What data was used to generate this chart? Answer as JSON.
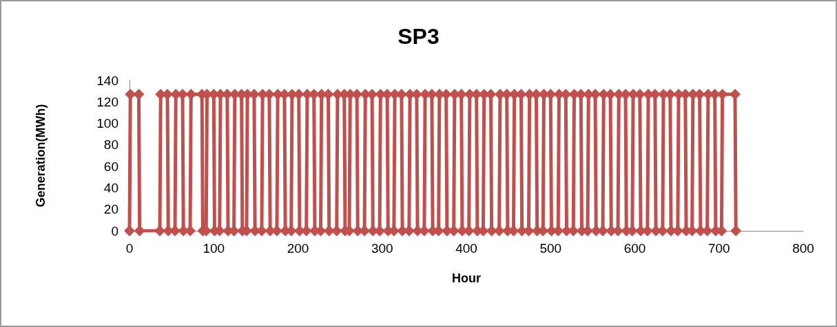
{
  "chart_data": {
    "type": "line",
    "title": "SP3",
    "xlabel": "Hour",
    "ylabel": "Generation(MWh)",
    "x": [
      0,
      1,
      11,
      12,
      36,
      37,
      45,
      46,
      54,
      55,
      63,
      64,
      72,
      73,
      86,
      87,
      91,
      92,
      100,
      101,
      107,
      108,
      116,
      117,
      124,
      125,
      133,
      134,
      139,
      140,
      148,
      149,
      157,
      158,
      166,
      167,
      175,
      176,
      184,
      185,
      192,
      193,
      201,
      202,
      210,
      211,
      219,
      220,
      227,
      228,
      236,
      237,
      246,
      247,
      255,
      256,
      261,
      262,
      270,
      271,
      279,
      280,
      288,
      289,
      297,
      298,
      306,
      307,
      314,
      315,
      323,
      324,
      332,
      333,
      341,
      342,
      350,
      351,
      359,
      360,
      367,
      368,
      376,
      377,
      385,
      386,
      394,
      395,
      403,
      404,
      412,
      413,
      420,
      421,
      429,
      430,
      439,
      440,
      448,
      449,
      456,
      457,
      465,
      466,
      474,
      475,
      483,
      484,
      491,
      492,
      500,
      501,
      509,
      510,
      518,
      519,
      527,
      528,
      536,
      537,
      544,
      545,
      553,
      554,
      562,
      563,
      571,
      572,
      580,
      581,
      589,
      590,
      597,
      598,
      606,
      607,
      615,
      616,
      624,
      625,
      633,
      634,
      642,
      643,
      651,
      652,
      660,
      661,
      668,
      669,
      677,
      678,
      686,
      687,
      695,
      696,
      703,
      704,
      719,
      720
    ],
    "series": [
      {
        "color": "#c0504d",
        "values": [
          0,
          127,
          127,
          0,
          0,
          127,
          127,
          0,
          0,
          127,
          127,
          0,
          0,
          127,
          127,
          0,
          0,
          127,
          127,
          0,
          0,
          127,
          127,
          0,
          0,
          127,
          127,
          0,
          0,
          127,
          127,
          0,
          0,
          127,
          127,
          0,
          0,
          127,
          127,
          0,
          0,
          127,
          127,
          0,
          0,
          127,
          127,
          0,
          0,
          127,
          127,
          0,
          0,
          127,
          127,
          0,
          0,
          127,
          127,
          0,
          0,
          127,
          127,
          0,
          0,
          127,
          127,
          0,
          0,
          127,
          127,
          0,
          0,
          127,
          127,
          0,
          0,
          127,
          127,
          0,
          0,
          127,
          127,
          0,
          0,
          127,
          127,
          0,
          0,
          127,
          127,
          0,
          0,
          127,
          127,
          0,
          0,
          127,
          127,
          0,
          0,
          127,
          127,
          0,
          0,
          127,
          127,
          0,
          0,
          127,
          127,
          0,
          0,
          127,
          127,
          0,
          0,
          127,
          127,
          0,
          0,
          127,
          127,
          0,
          0,
          127,
          127,
          0,
          0,
          127,
          127,
          0,
          0,
          127,
          127,
          0,
          0,
          127,
          127,
          0,
          0,
          127,
          127,
          0,
          0,
          127,
          127,
          0,
          0,
          127,
          127,
          0,
          0,
          127,
          127,
          0,
          0,
          127,
          127,
          0
        ]
      }
    ],
    "xlim": [
      0,
      800
    ],
    "xticks": [
      0,
      100,
      200,
      300,
      400,
      500,
      600,
      700,
      800
    ],
    "ylim": [
      0,
      140
    ],
    "yticks": [
      0,
      20,
      40,
      60,
      80,
      100,
      120,
      140
    ],
    "grid": false,
    "marker": "diamond",
    "line_style": "solid"
  }
}
